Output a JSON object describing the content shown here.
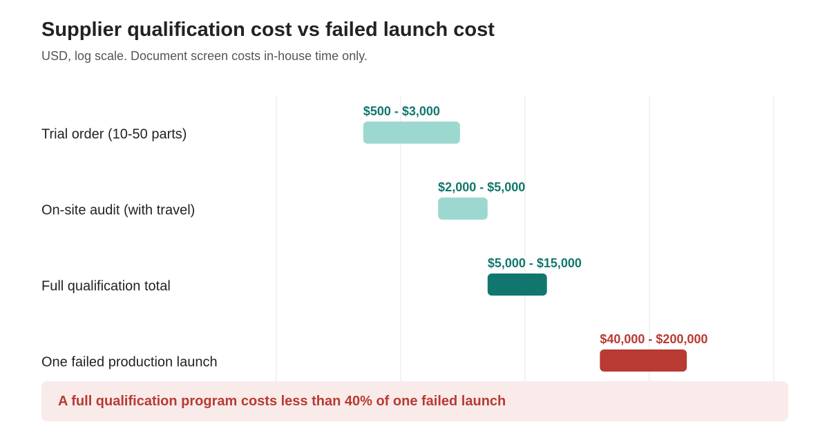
{
  "header": {
    "title": "Supplier qualification cost vs failed launch cost",
    "subtitle": "USD, log scale. Document screen costs in-house time only."
  },
  "callout": {
    "text": "A full qualification program costs less than 40% of one failed launch",
    "color": "#b83a32",
    "background": "#f9ebea"
  },
  "colors": {
    "light_teal": "#9dd8d0",
    "dark_teal": "#11776e",
    "red": "#b83a32",
    "teal_label": "#11776e",
    "gridline": "#e6e6e6"
  },
  "chart_data": {
    "type": "range-bar",
    "scale": "log",
    "x_unit": "USD",
    "xlim": [
      100,
      1000000
    ],
    "grid": true,
    "categories": [
      "Trial order (10-50 parts)",
      "On-site audit (with travel)",
      "Full qualification total",
      "One failed production launch"
    ],
    "ranges": [
      {
        "category": "Trial order (10-50 parts)",
        "low": 500,
        "high": 3000,
        "label": "$500 - $3,000",
        "color": "#9dd8d0",
        "label_color": "#11776e"
      },
      {
        "category": "On-site audit (with travel)",
        "low": 2000,
        "high": 5000,
        "label": "$2,000 - $5,000",
        "color": "#9dd8d0",
        "label_color": "#11776e"
      },
      {
        "category": "Full qualification total",
        "low": 5000,
        "high": 15000,
        "label": "$5,000 - $15,000",
        "color": "#11776e",
        "label_color": "#11776e"
      },
      {
        "category": "One failed production launch",
        "low": 40000,
        "high": 200000,
        "label": "$40,000 - $200,000",
        "color": "#b83a32",
        "label_color": "#b83a32"
      }
    ]
  }
}
